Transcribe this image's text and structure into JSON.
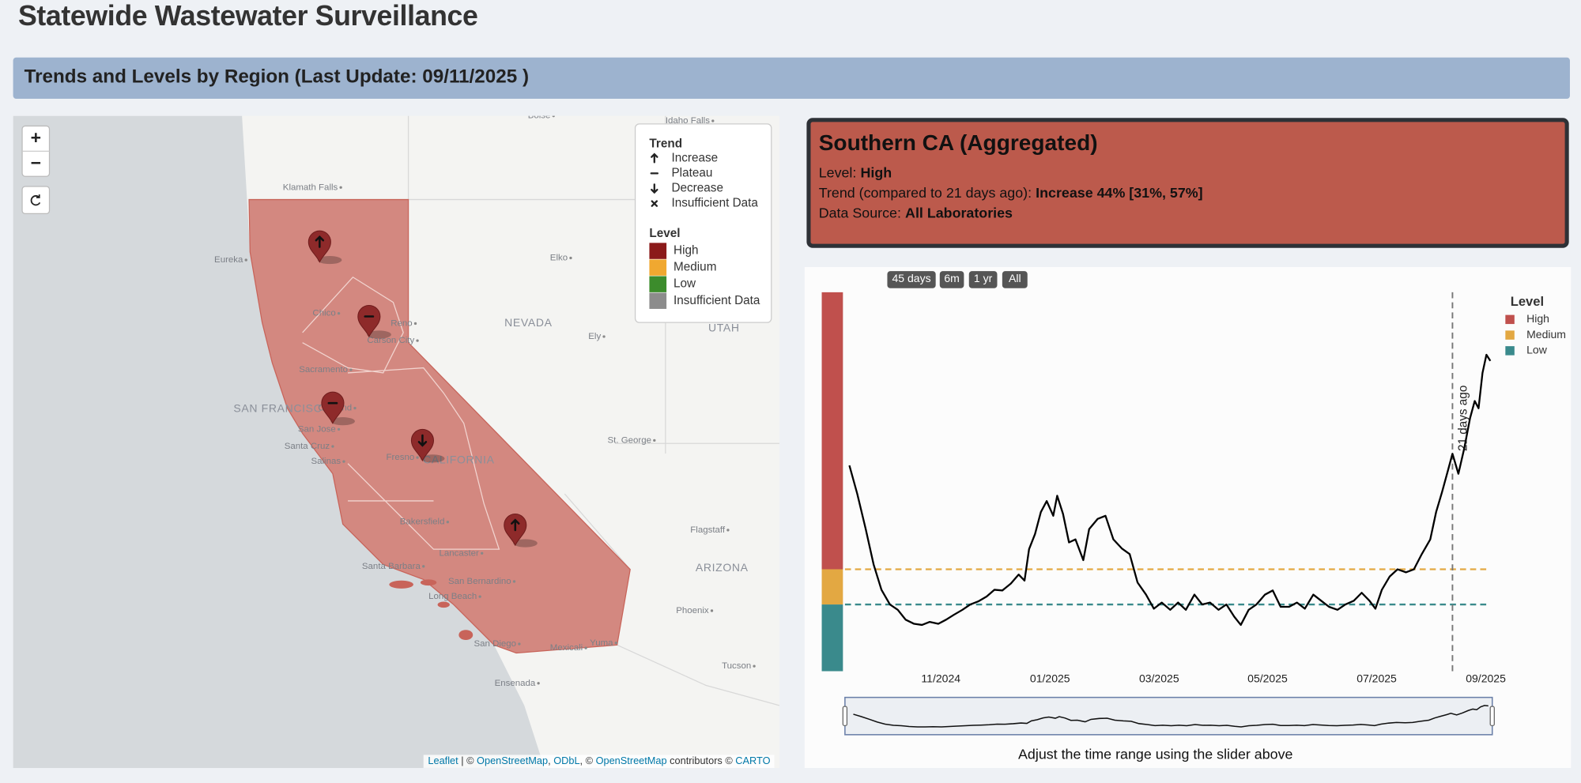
{
  "header": {
    "title": "Statewide Wastewater Surveillance",
    "banner": "Trends and Levels by Region (Last Update: 09/11/2025 )"
  },
  "zoom": [
    "+",
    "−"
  ],
  "map": {
    "states": [
      "NEVADA",
      "UTAH",
      "ARIZONA",
      "CALIFORNIA",
      "SAN FRANCISCO"
    ],
    "cities": [
      "Klamath Falls",
      "Eureka",
      "Elko",
      "Ely",
      "Reno",
      "Carson City",
      "Chico",
      "Sacramento",
      "Oakland",
      "San Jose",
      "Santa Cruz",
      "Salinas",
      "Fresno",
      "St. George",
      "Bakersfield",
      "Flagstaff",
      "Lancaster",
      "Santa Barbara",
      "San Bernardino",
      "Long Beach",
      "Phoenix",
      "San Diego",
      "Mexicali",
      "Yuma",
      "Tucson",
      "Ensenada",
      "Boise",
      "Idaho Falls"
    ]
  },
  "map_legend": {
    "trend_title": "Trend",
    "trends": [
      "Increase",
      "Plateau",
      "Decrease",
      "Insufficient Data"
    ],
    "level_title": "Level",
    "levels": [
      {
        "name": "High",
        "color": "#8b1a1a"
      },
      {
        "name": "Medium",
        "color": "#f0a830"
      },
      {
        "name": "Low",
        "color": "#3c8c2c"
      },
      {
        "name": "Insufficient Data",
        "color": "#8c8c8c"
      }
    ]
  },
  "attribution": [
    {
      "text": "Leaflet",
      "link": true
    },
    {
      "text": " | © ",
      "link": false
    },
    {
      "text": "OpenStreetMap",
      "link": true
    },
    {
      "text": ", ",
      "link": false
    },
    {
      "text": "ODbL",
      "link": true
    },
    {
      "text": ", © ",
      "link": false
    },
    {
      "text": "OpenStreetMap",
      "link": true
    },
    {
      "text": " contributors © ",
      "link": false
    },
    {
      "text": "CARTO",
      "link": true
    }
  ],
  "info": {
    "title": "Southern CA (Aggregated)",
    "rows": [
      {
        "label": "Level:",
        "value": "High"
      },
      {
        "label": "Trend (compared to 21 days ago):",
        "value": "Increase 44% [31%, 57%]"
      },
      {
        "label": "Data Source:",
        "value": "All Laboratories"
      }
    ]
  },
  "range_buttons": [
    "45 days",
    "6m",
    "1 yr",
    "All"
  ],
  "slider_caption": "Adjust the time range using the slider above",
  "chart_data": {
    "type": "line",
    "x": [
      2024.693,
      2024.705,
      2024.718,
      2024.73,
      2024.742,
      2024.755,
      2024.767,
      2024.779,
      2024.792,
      2024.804,
      2024.816,
      2024.829,
      2024.841,
      2024.853,
      2024.866,
      2024.878,
      2024.89,
      2024.903,
      2024.915,
      2024.927,
      2024.94,
      2024.952,
      2024.961,
      2024.968,
      2024.977,
      2024.986,
      2024.995,
      2025.005,
      2025.011,
      2025.02,
      2025.029,
      2025.039,
      2025.051,
      2025.06,
      2025.073,
      2025.085,
      2025.097,
      2025.11,
      2025.122,
      2025.134,
      2025.147,
      2025.159,
      2025.171,
      2025.184,
      2025.196,
      2025.208,
      2025.221,
      2025.233,
      2025.245,
      2025.258,
      2025.27,
      2025.282,
      2025.292,
      2025.304,
      2025.316,
      2025.329,
      2025.341,
      2025.353,
      2025.366,
      2025.378,
      2025.39,
      2025.403,
      2025.415,
      2025.427,
      2025.44,
      2025.452,
      2025.465,
      2025.477,
      2025.489,
      2025.498,
      2025.508,
      2025.52,
      2025.532,
      2025.545,
      2025.557,
      2025.569,
      2025.582,
      2025.591,
      2025.6,
      2025.61,
      2025.616,
      2025.625,
      2025.634,
      2025.643,
      2025.65,
      2025.656,
      2025.662,
      2025.668,
      2025.674
    ],
    "series": [
      {
        "color": "#000000",
        "values": [
          54.3,
          46.8,
          37.5,
          28.2,
          21.5,
          17.6,
          16.2,
          13.6,
          12.5,
          12.2,
          13.0,
          12.5,
          13.6,
          14.9,
          16.2,
          17.6,
          18.4,
          19.7,
          21.5,
          21.3,
          23.1,
          25.5,
          23.9,
          32.2,
          36.2,
          42.0,
          44.9,
          41.0,
          46.3,
          41.5,
          34.0,
          34.8,
          29.3,
          37.5,
          40.2,
          41.0,
          34.8,
          32.4,
          30.9,
          23.4,
          20.2,
          16.5,
          18.1,
          16.2,
          18.1,
          16.2,
          20.2,
          17.6,
          18.1,
          16.2,
          17.6,
          14.4,
          12.2,
          16.2,
          17.6,
          20.2,
          21.3,
          17.0,
          17.0,
          18.1,
          16.5,
          20.2,
          18.6,
          17.0,
          16.2,
          17.6,
          18.6,
          20.7,
          18.6,
          16.5,
          21.5,
          25.0,
          26.9,
          26.1,
          26.9,
          30.9,
          34.8,
          42.0,
          47.3,
          53.5,
          57.4,
          52.1,
          58.8,
          66.8,
          71.3,
          69.4,
          78.7,
          83.5,
          81.9
        ]
      }
    ],
    "xlim": [
      2024.68,
      2025.68
    ],
    "xticks": [
      {
        "value": 2024.833,
        "label": "11/2024"
      },
      {
        "value": 2025.0,
        "label": "01/2025"
      },
      {
        "value": 2025.167,
        "label": "03/2025"
      },
      {
        "value": 2025.333,
        "label": "05/2025"
      },
      {
        "value": 2025.5,
        "label": "07/2025"
      },
      {
        "value": 2025.667,
        "label": "09/2025"
      }
    ],
    "ylim": [
      0,
      100
    ],
    "legend_title": "Level",
    "levels": [
      {
        "name": "High",
        "color": "#c0504d"
      },
      {
        "name": "Medium",
        "color": "#e3a842",
        "max": 26.9
      },
      {
        "name": "Low",
        "color": "#3a8a8c",
        "max": 17.6
      }
    ],
    "annotation": {
      "text": "21 days ago",
      "x": 2025.616
    }
  }
}
